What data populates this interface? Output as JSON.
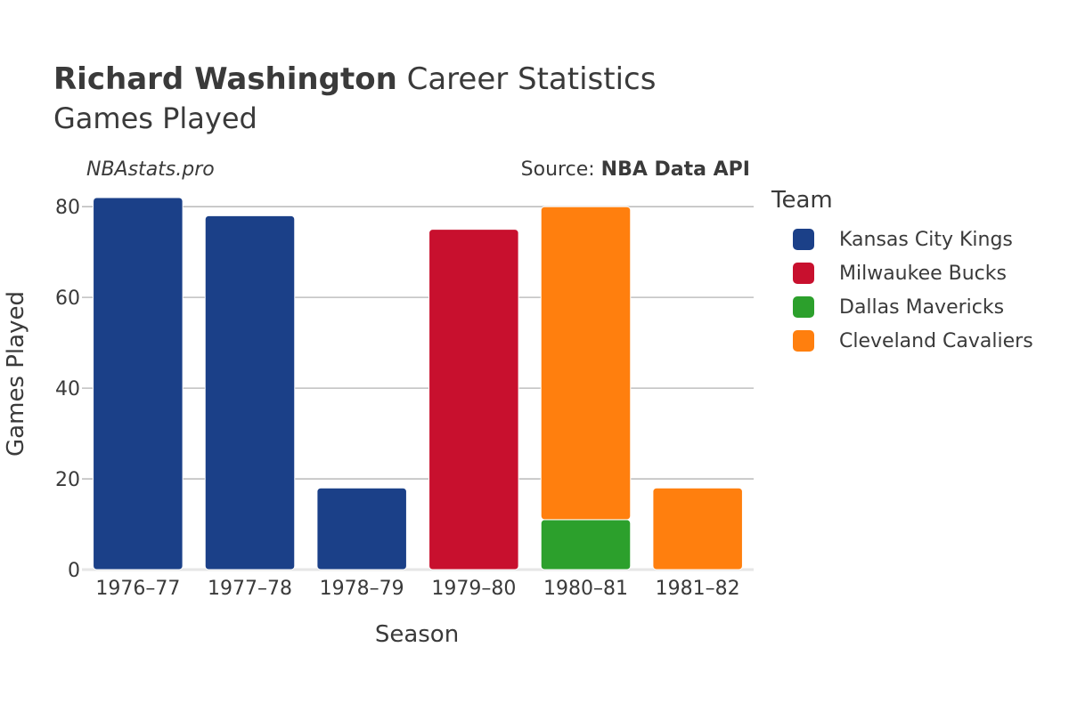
{
  "header": {
    "title_bold": "Richard Washington",
    "title_rest": "Career Statistics",
    "subtitle": "Games Played",
    "brand": "NBAstats.pro",
    "source_prefix": "Source:",
    "source_name": "NBA Data API"
  },
  "chart_data": {
    "type": "bar",
    "stacked": true,
    "categories": [
      "1976–77",
      "1977–78",
      "1978–79",
      "1979–80",
      "1980–81",
      "1981–82"
    ],
    "series": [
      {
        "name": "Kansas City Kings",
        "color": "#1b4088",
        "values": [
          82,
          78,
          18,
          0,
          0,
          0
        ]
      },
      {
        "name": "Milwaukee Bucks",
        "color": "#c8102e",
        "values": [
          0,
          0,
          0,
          75,
          0,
          0
        ]
      },
      {
        "name": "Dallas Mavericks",
        "color": "#2ca02c",
        "values": [
          0,
          0,
          0,
          0,
          11,
          0
        ]
      },
      {
        "name": "Cleveland Cavaliers",
        "color": "#ff7f0e",
        "values": [
          0,
          0,
          0,
          0,
          69,
          18
        ]
      }
    ],
    "xlabel": "Season",
    "ylabel": "Games Played",
    "ylim": [
      0,
      82
    ],
    "yticks": [
      0,
      20,
      40,
      60,
      80
    ],
    "grid": true,
    "legend_title": "Team",
    "legend_position": "right"
  }
}
